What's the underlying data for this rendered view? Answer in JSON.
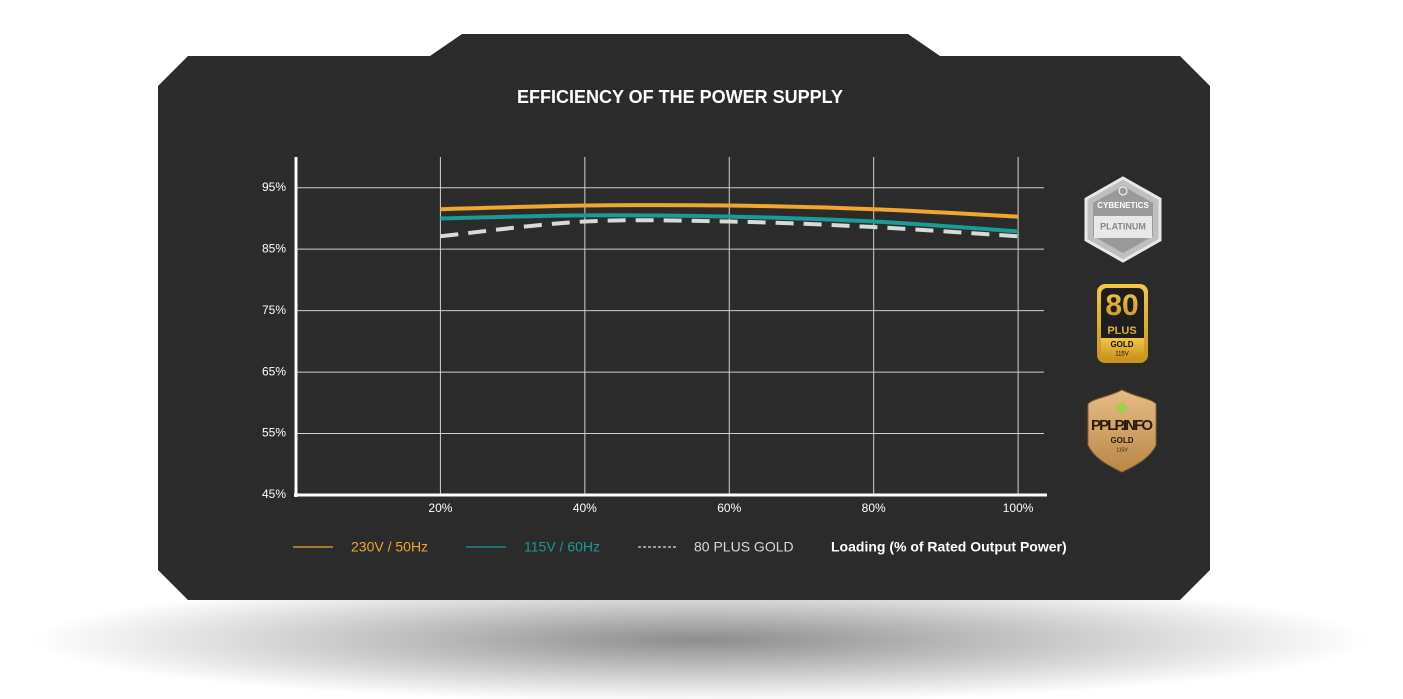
{
  "chart_data": {
    "type": "line",
    "title": "EFFICIENCY OF THE POWER SUPPLY",
    "x_label": "Loading (% of Rated Output Power)",
    "x": [
      20,
      40,
      60,
      80,
      100
    ],
    "series": [
      {
        "name": "230V / 50Hz",
        "color": "#f0a630",
        "values": [
          91.5,
          92.1,
          92.1,
          91.5,
          90.3
        ]
      },
      {
        "name": "115V / 60Hz",
        "color": "#1a9b93",
        "values": [
          90.0,
          90.5,
          90.3,
          89.5,
          87.9
        ]
      },
      {
        "name": "80 PLUS GOLD",
        "color": "#d9d9d9",
        "dashed": true,
        "values": [
          87.1,
          89.5,
          89.5,
          88.6,
          87.1
        ]
      }
    ],
    "xlim": [
      0,
      104
    ],
    "ylim": [
      45,
      100
    ],
    "xticks": [
      {
        "value": 20,
        "label": "20%"
      },
      {
        "value": 40,
        "label": "40%"
      },
      {
        "value": 60,
        "label": "60%"
      },
      {
        "value": 80,
        "label": "80%"
      },
      {
        "value": 100,
        "label": "100%"
      }
    ],
    "yticks": [
      {
        "value": 45,
        "label": "45%"
      },
      {
        "value": 55,
        "label": "55%"
      },
      {
        "value": 65,
        "label": "65%"
      },
      {
        "value": 75,
        "label": "75%"
      },
      {
        "value": 85,
        "label": "85%"
      },
      {
        "value": 95,
        "label": "95%"
      }
    ],
    "grid": true
  },
  "badges": {
    "cybenetics": [
      "CYBENETICS",
      "PLATINUM"
    ],
    "plus80": [
      "80",
      "PLUS",
      "GOLD",
      "115V"
    ],
    "pplp": [
      "PPLP.INFO",
      "GOLD",
      "115V"
    ]
  }
}
